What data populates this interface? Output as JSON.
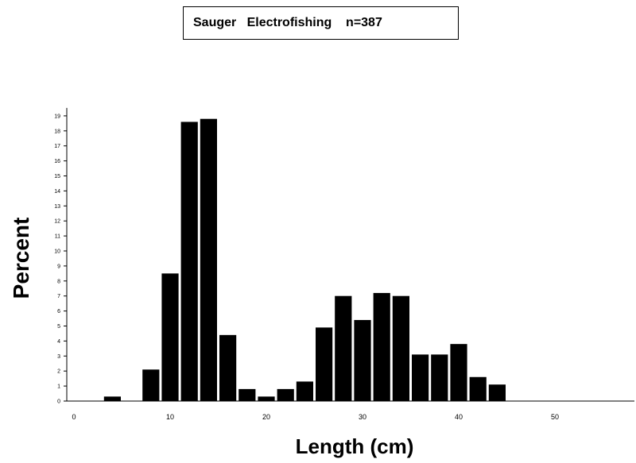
{
  "chart_data": {
    "type": "bar",
    "title": "Sauger   Electrofishing    n=387",
    "xlabel": "Length  (cm)",
    "ylabel": "Percent",
    "xlim": [
      0,
      58
    ],
    "ylim": [
      0,
      19
    ],
    "x_ticks": [
      0,
      10,
      20,
      30,
      40,
      50
    ],
    "y_ticks": [
      0,
      1,
      2,
      3,
      4,
      5,
      6,
      7,
      8,
      9,
      10,
      11,
      12,
      13,
      14,
      15,
      16,
      17,
      18,
      19
    ],
    "bin_width": 2,
    "x": [
      4,
      6,
      8,
      10,
      12,
      14,
      16,
      18,
      20,
      22,
      24,
      26,
      28,
      30,
      32,
      34,
      36,
      38,
      40,
      42,
      44
    ],
    "values": [
      0.3,
      0,
      2.1,
      8.5,
      18.6,
      18.8,
      4.4,
      0.8,
      0.3,
      0.8,
      1.3,
      4.9,
      7.0,
      5.4,
      7.2,
      7.0,
      3.1,
      3.1,
      3.8,
      1.6,
      1.1
    ],
    "bar_color": "#000000",
    "grid": false
  }
}
